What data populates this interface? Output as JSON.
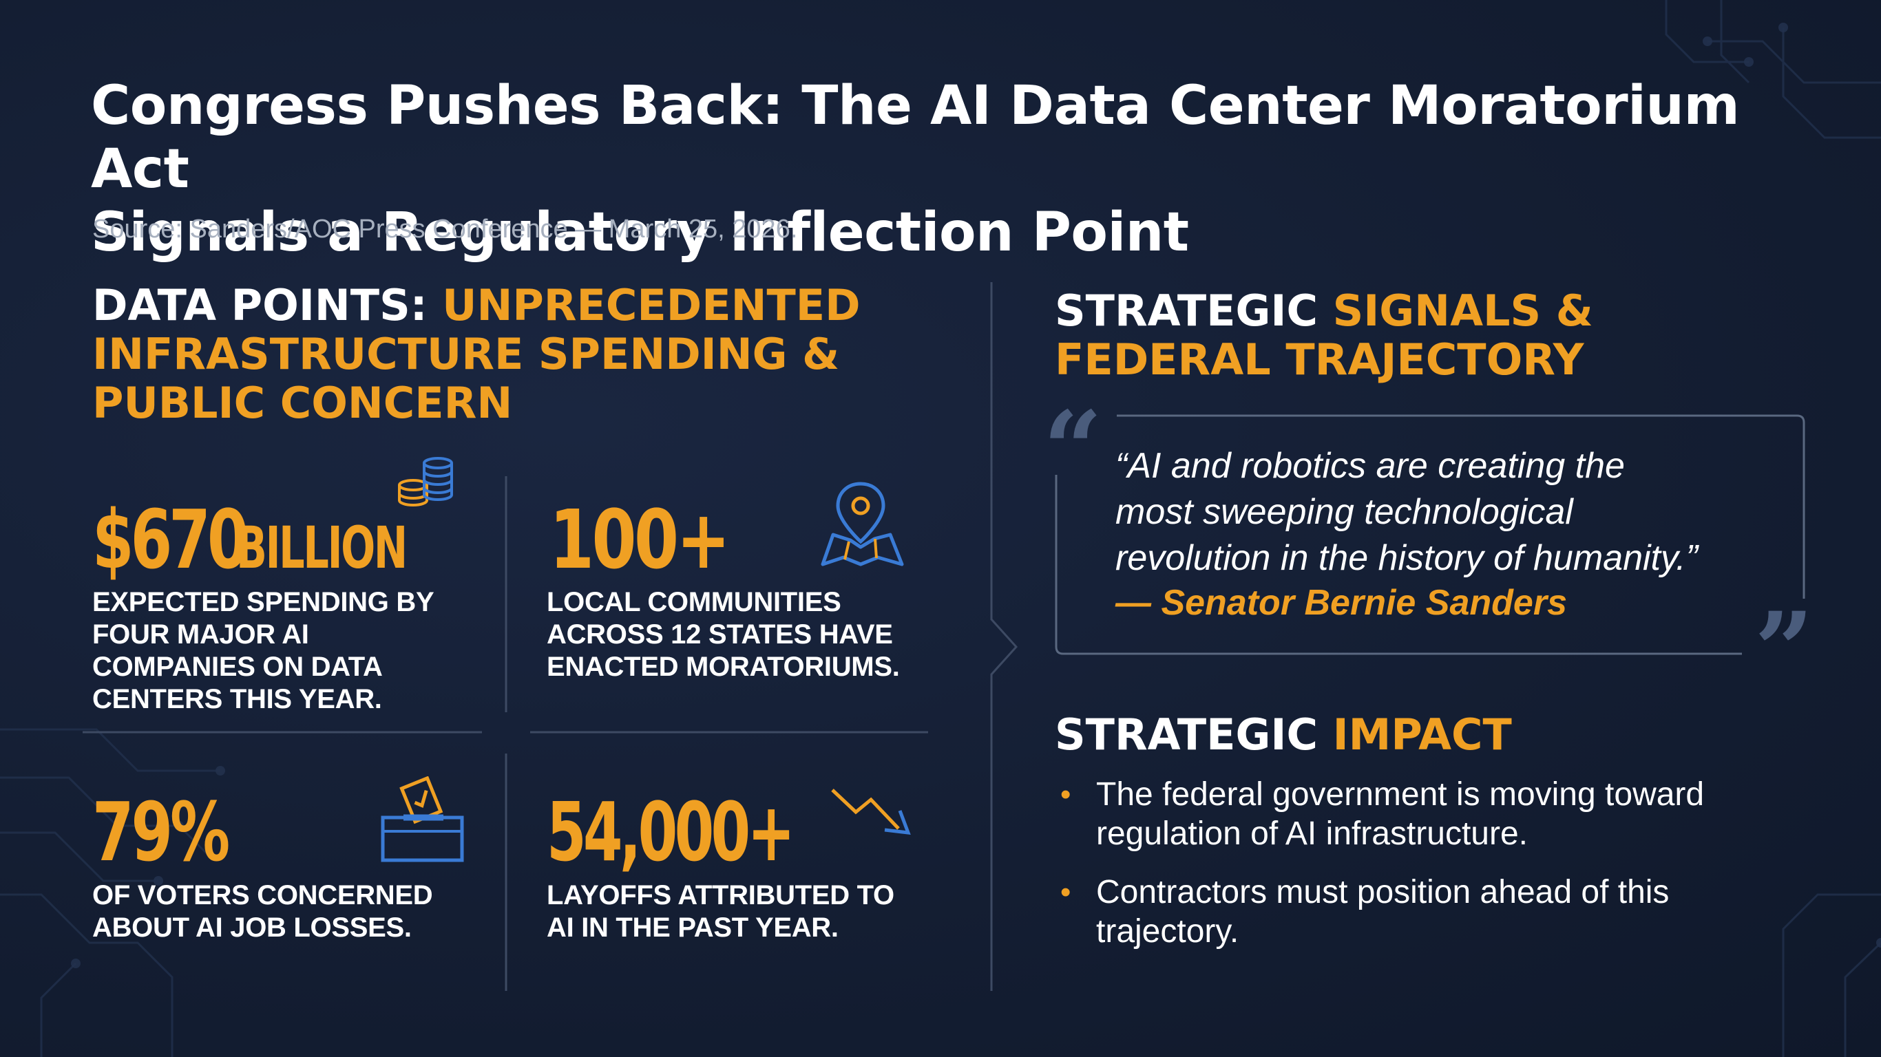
{
  "header": {
    "title_line1": "Congress Pushes Back: The AI Data Center Moratorium Act",
    "title_line2": "Signals a Regulatory Inflection Point",
    "source": "Source: Sanders/AOC Press Conference — March 25, 2026."
  },
  "data_points": {
    "heading_white": "DATA POINTS:",
    "heading_orange_1": "UNPRECEDENTED",
    "heading_orange_2": "INFRASTRUCTURE SPENDING &",
    "heading_orange_3": "PUBLIC CONCERN",
    "stats": [
      {
        "value": "$670",
        "unit": "BILLION",
        "desc": [
          "EXPECTED SPENDING BY",
          "FOUR MAJOR AI",
          "COMPANIES ON DATA",
          "CENTERS THIS YEAR."
        ],
        "icon": "coins-stack-icon"
      },
      {
        "value": "100+",
        "desc": [
          "LOCAL COMMUNITIES",
          "ACROSS 12 STATES HAVE",
          "ENACTED MORATORIUMS."
        ],
        "icon": "map-pin-icon"
      },
      {
        "value": "79%",
        "desc": [
          "OF VOTERS CONCERNED",
          "ABOUT AI JOB LOSSES."
        ],
        "icon": "ballot-box-icon"
      },
      {
        "value": "54,000+",
        "desc": [
          "LAYOFFS ATTRIBUTED TO",
          "AI IN THE PAST YEAR."
        ],
        "icon": "trend-down-icon"
      }
    ]
  },
  "strategic": {
    "heading_white": "STRATEGIC",
    "heading_orange_1": "SIGNALS &",
    "heading_orange_2": "FEDERAL TRAJECTORY",
    "quote_lines": [
      "“AI and robotics are creating the",
      "most sweeping technological",
      "revolution in the history of humanity.”"
    ],
    "quote_author": "— Senator Bernie Sanders",
    "impact_heading_white": "STRATEGIC",
    "impact_heading_orange": "IMPACT",
    "impact_bullets": [
      [
        "The federal government is moving toward",
        "regulation of AI infrastructure."
      ],
      [
        "Contractors must position ahead of this",
        "trajectory."
      ]
    ]
  },
  "colors": {
    "background": "#141e33",
    "accent_orange": "#f0a023",
    "icon_blue": "#3a7bd5",
    "divider": "#3d4a63"
  }
}
